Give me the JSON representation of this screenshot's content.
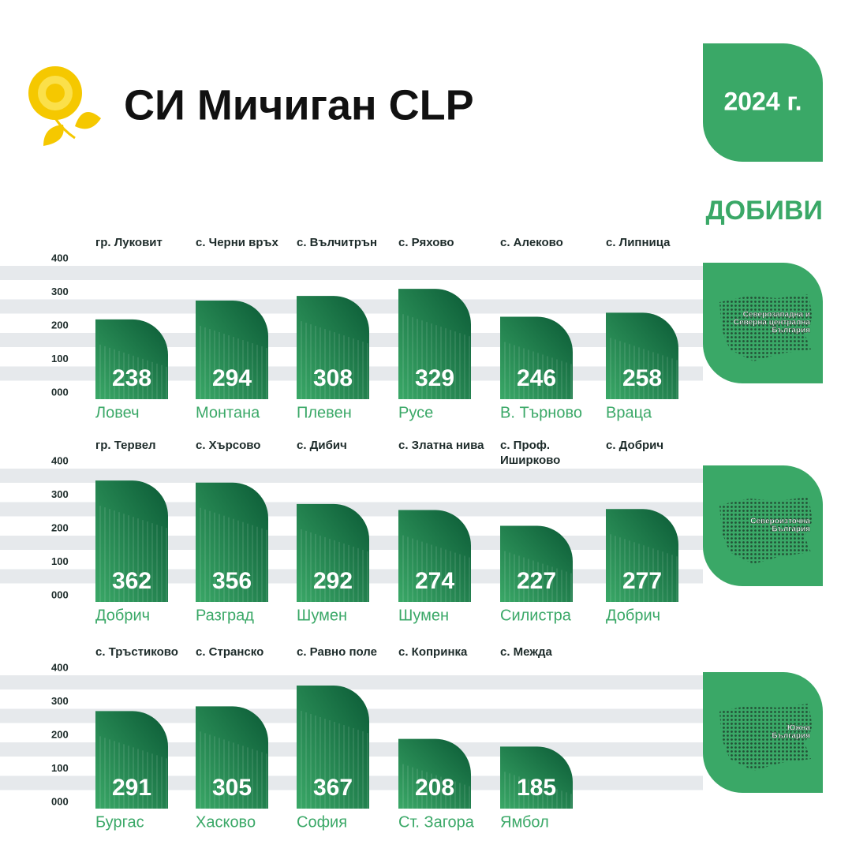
{
  "header": {
    "title": "СИ Мичиган CLP",
    "year": "2024 г.",
    "section": "ДОБИВИ"
  },
  "chart_data": [
    {
      "type": "bar",
      "region": [
        "Северозападна и",
        "Северна централна",
        "България"
      ],
      "categories": [
        "Ловеч",
        "Монтана",
        "Плевен",
        "Русе",
        "В. Търново",
        "Враца"
      ],
      "locations": [
        "гр. Луковит",
        "с. Черни връх",
        "с. Вълчитрън",
        "с. Ряхово",
        "с. Алеково",
        "с. Липница"
      ],
      "values": [
        238,
        294,
        308,
        329,
        246,
        258
      ],
      "ylim": [
        0,
        400
      ],
      "yticks": [
        {
          "value": 0,
          "label": "000"
        },
        100,
        200,
        300,
        400
      ],
      "grid": true,
      "color": "#1f7a4a"
    },
    {
      "type": "bar",
      "region": [
        "Североизточна",
        "България"
      ],
      "categories": [
        "Добрич",
        "Разград",
        "Шумен",
        "Шумен",
        "Силистра",
        "Добрич"
      ],
      "locations": [
        "гр. Тервел",
        "с. Хърсово",
        "с. Дибич",
        "с. Златна нива",
        "с. Проф. Иширково",
        "с. Добрич"
      ],
      "values": [
        362,
        356,
        292,
        274,
        227,
        277
      ],
      "ylim": [
        0,
        400
      ],
      "yticks": [
        {
          "value": 0,
          "label": "000"
        },
        100,
        200,
        300,
        400
      ],
      "grid": true,
      "color": "#1f7a4a"
    },
    {
      "type": "bar",
      "region": [
        "Южна",
        "България"
      ],
      "categories": [
        "Бургас",
        "Хасково",
        "София",
        "Ст. Загора",
        "Ямбол"
      ],
      "locations": [
        "с. Тръстиково",
        "с. Странско",
        "с. Равно поле",
        "с. Копринка",
        "с. Межда"
      ],
      "values": [
        291,
        305,
        367,
        208,
        185
      ],
      "ylim": [
        0,
        400
      ],
      "yticks": [
        {
          "value": 0,
          "label": "000"
        },
        100,
        200,
        300,
        400
      ],
      "grid": true,
      "color": "#1f7a4a"
    }
  ]
}
